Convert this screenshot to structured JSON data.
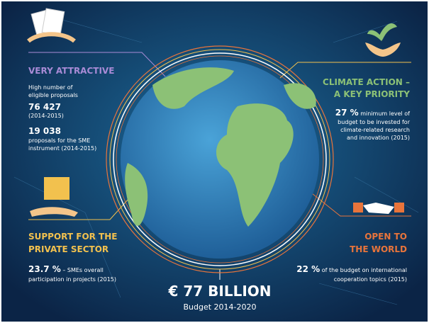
{
  "panels": {
    "attractive": {
      "title": "VERY ATTRACTIVE",
      "intro": [
        "High number of",
        "eligible proposals"
      ],
      "figure1": "76 427",
      "period1": "(2014-2015)",
      "figure2": "19 038",
      "desc2": [
        "proposals for the SME",
        "instrument  (2014-2015)"
      ]
    },
    "climate": {
      "title": [
        "CLIMATE ACTION –",
        "A KEY PRIORITY"
      ],
      "figure": "27 %",
      "desc": [
        " minimum level of",
        "budget to be invested for",
        "climate-related research",
        "and innovation (2015)"
      ]
    },
    "private": {
      "title": [
        "SUPPORT FOR THE",
        "PRIVATE SECTOR"
      ],
      "figure": "23.7 %",
      "desc": [
        " – SMEs overall",
        "participation in projects (2015)"
      ]
    },
    "world": {
      "title": [
        "OPEN TO",
        "THE WORLD"
      ],
      "figure": "22 %",
      "desc": [
        " of the budget on international",
        "cooperation topics (2015)"
      ]
    },
    "budget": {
      "amount": "€ 77 BILLION",
      "period": "Budget 2014-2020"
    }
  }
}
